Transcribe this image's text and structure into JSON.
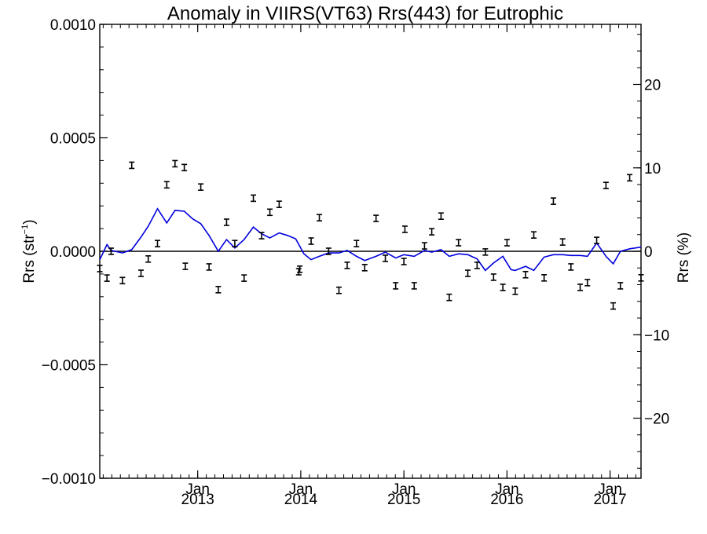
{
  "chart_data": {
    "type": "line",
    "title": "Anomaly in VIIRS(VT63) Rrs(443) for Eutrophic",
    "ylabel_left": "Rrs (str",
    "ylabel_left_sup": "−1",
    "ylabel_left_close": ")",
    "ylabel_right": "Rrs (%)",
    "left_axis": {
      "ylim": [
        -0.001,
        0.001
      ],
      "ticks": [
        -0.001,
        -0.0005,
        0.0,
        0.0005,
        0.001
      ],
      "tick_labels": [
        "−0.0010",
        "−0.0005",
        "0.0000",
        "0.0005",
        "0.0010"
      ]
    },
    "right_axis": {
      "ylim": [
        -27.2,
        27.2
      ],
      "ticks": [
        -20,
        -10,
        0,
        10,
        20
      ],
      "tick_labels": [
        "−20",
        "−10",
        "0",
        "10",
        "20"
      ]
    },
    "x_axis": {
      "xlim": [
        2012.05,
        2017.3
      ],
      "ticks": [
        2013.0,
        2014.0,
        2015.0,
        2016.0,
        2017.0
      ],
      "tick_month_label": "Jan",
      "tick_year_labels": [
        "2013",
        "2014",
        "2015",
        "2016",
        "2017"
      ]
    },
    "grid": false,
    "series": [
      {
        "style": "errorbar",
        "color": "#000000",
        "points": [
          {
            "x": 2012.05,
            "y": -7.6e-05
          },
          {
            "x": 2012.12,
            "y": -0.000118
          },
          {
            "x": 2012.16,
            "y": 0.0
          },
          {
            "x": 2012.27,
            "y": -0.000129
          },
          {
            "x": 2012.36,
            "y": 0.000379
          },
          {
            "x": 2012.45,
            "y": -9.7e-05
          },
          {
            "x": 2012.52,
            "y": -3.4e-05
          },
          {
            "x": 2012.61,
            "y": 3.4e-05
          },
          {
            "x": 2012.7,
            "y": 0.000293
          },
          {
            "x": 2012.78,
            "y": 0.000386
          },
          {
            "x": 2012.87,
            "y": 0.000369
          },
          {
            "x": 2012.88,
            "y": -6.6e-05
          },
          {
            "x": 2013.03,
            "y": 0.000283
          },
          {
            "x": 2013.11,
            "y": -6.9e-05
          },
          {
            "x": 2013.2,
            "y": -0.000169
          },
          {
            "x": 2013.28,
            "y": 0.000128
          },
          {
            "x": 2013.36,
            "y": 3.4e-05
          },
          {
            "x": 2013.45,
            "y": -0.000118
          },
          {
            "x": 2013.54,
            "y": 0.000234
          },
          {
            "x": 2013.62,
            "y": 6.9e-05
          },
          {
            "x": 2013.7,
            "y": 0.000172
          },
          {
            "x": 2013.79,
            "y": 0.000207
          },
          {
            "x": 2013.98,
            "y": -9e-05
          },
          {
            "x": 2013.99,
            "y": -7.9e-05
          },
          {
            "x": 2014.1,
            "y": 4.5e-05
          },
          {
            "x": 2014.18,
            "y": 0.000148
          },
          {
            "x": 2014.27,
            "y": 0.0
          },
          {
            "x": 2014.37,
            "y": -0.000172
          },
          {
            "x": 2014.45,
            "y": -6.2e-05
          },
          {
            "x": 2014.54,
            "y": 3.4e-05
          },
          {
            "x": 2014.62,
            "y": -7.2e-05
          },
          {
            "x": 2014.73,
            "y": 0.000145
          },
          {
            "x": 2014.82,
            "y": -3.1e-05
          },
          {
            "x": 2014.92,
            "y": -0.000152
          },
          {
            "x": 2015.0,
            "y": -4.5e-05
          },
          {
            "x": 2015.01,
            "y": 9.7e-05
          },
          {
            "x": 2015.1,
            "y": -0.000152
          },
          {
            "x": 2015.2,
            "y": 2.4e-05
          },
          {
            "x": 2015.27,
            "y": 8.6e-05
          },
          {
            "x": 2015.36,
            "y": 0.000155
          },
          {
            "x": 2015.44,
            "y": -0.000203
          },
          {
            "x": 2015.53,
            "y": 3.8e-05
          },
          {
            "x": 2015.62,
            "y": -9.7e-05
          },
          {
            "x": 2015.71,
            "y": -6.2e-05
          },
          {
            "x": 2015.79,
            "y": -3e-06
          },
          {
            "x": 2015.87,
            "y": -0.000114
          },
          {
            "x": 2015.96,
            "y": -0.000159
          },
          {
            "x": 2016.0,
            "y": 3.8e-05
          },
          {
            "x": 2016.08,
            "y": -0.000176
          },
          {
            "x": 2016.18,
            "y": -0.000103
          },
          {
            "x": 2016.26,
            "y": 7.2e-05
          },
          {
            "x": 2016.36,
            "y": -0.000117
          },
          {
            "x": 2016.45,
            "y": 0.000221
          },
          {
            "x": 2016.54,
            "y": 4.1e-05
          },
          {
            "x": 2016.62,
            "y": -6.9e-05
          },
          {
            "x": 2016.71,
            "y": -0.000159
          },
          {
            "x": 2016.78,
            "y": -0.000138
          },
          {
            "x": 2016.87,
            "y": 4.8e-05
          },
          {
            "x": 2016.96,
            "y": 0.00029
          },
          {
            "x": 2017.03,
            "y": -0.000241
          },
          {
            "x": 2017.1,
            "y": -0.000152
          },
          {
            "x": 2017.19,
            "y": 0.000324
          },
          {
            "x": 2017.3,
            "y": -0.000117
          }
        ]
      },
      {
        "style": "line",
        "color": "#0000dd",
        "axis": "right",
        "x": [
          2012.05,
          2012.12,
          2012.16,
          2012.27,
          2012.36,
          2012.45,
          2012.52,
          2012.61,
          2012.7,
          2012.78,
          2012.87,
          2012.95,
          2013.03,
          2013.11,
          2013.2,
          2013.28,
          2013.36,
          2013.45,
          2013.54,
          2013.62,
          2013.7,
          2013.79,
          2013.87,
          2013.95,
          2014.03,
          2014.1,
          2014.18,
          2014.27,
          2014.37,
          2014.45,
          2014.54,
          2014.62,
          2014.73,
          2014.82,
          2014.92,
          2015.0,
          2015.1,
          2015.2,
          2015.27,
          2015.36,
          2015.44,
          2015.53,
          2015.62,
          2015.71,
          2015.79,
          2015.87,
          2015.96,
          2016.04,
          2016.08,
          2016.18,
          2016.26,
          2016.36,
          2016.45,
          2016.54,
          2016.62,
          2016.71,
          2016.78,
          2016.87,
          2016.96,
          2017.03,
          2017.1,
          2017.19,
          2017.3
        ],
        "y": [
          -1.0,
          0.8,
          0.1,
          -0.2,
          0.2,
          1.7,
          3.0,
          5.1,
          3.4,
          4.9,
          4.8,
          3.9,
          3.3,
          1.9,
          0.0,
          1.4,
          0.4,
          1.4,
          2.9,
          2.1,
          1.6,
          2.2,
          1.9,
          1.5,
          -0.3,
          -1.0,
          -0.6,
          -0.2,
          -0.2,
          0.1,
          -0.6,
          -1.1,
          -0.6,
          -0.1,
          -0.8,
          -0.4,
          -0.6,
          0.1,
          -0.1,
          0.2,
          -0.6,
          -0.3,
          -0.4,
          -0.9,
          -2.3,
          -1.4,
          -0.6,
          -2.2,
          -2.3,
          -1.8,
          -2.3,
          -0.7,
          -0.4,
          -0.4,
          -0.5,
          -0.5,
          -0.6,
          1.0,
          -0.6,
          -1.5,
          0.0,
          0.3,
          0.5
        ]
      }
    ]
  }
}
